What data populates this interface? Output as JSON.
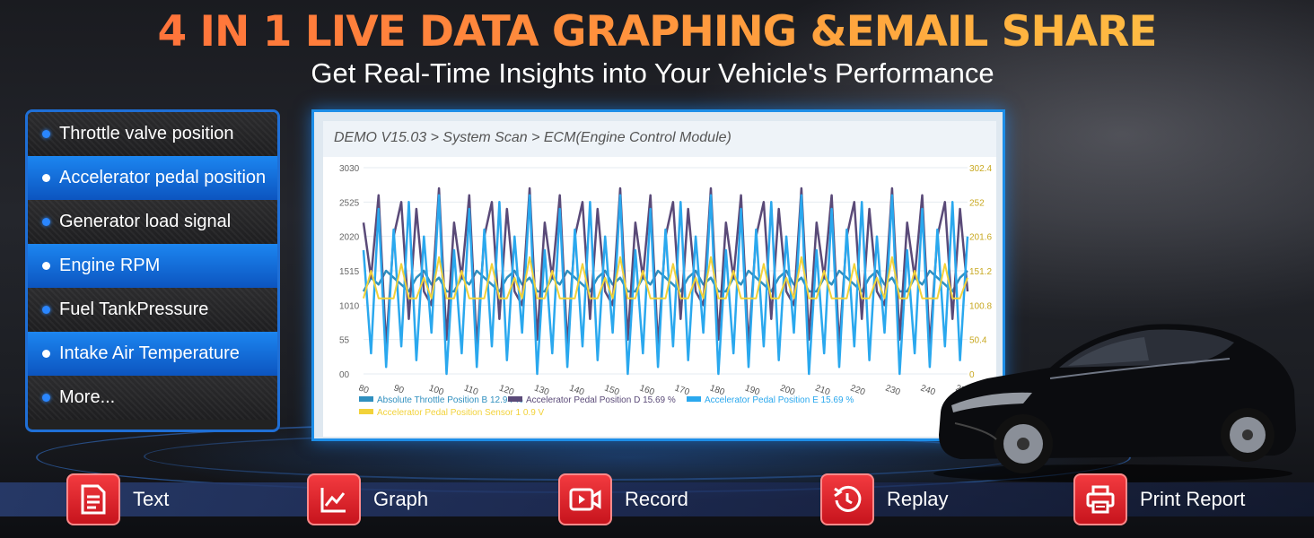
{
  "header": {
    "title": "4 IN 1 LIVE DATA GRAPHING &EMAIL SHARE",
    "subtitle": "Get Real-Time Insights into Your Vehicle's Performance"
  },
  "feature_list": [
    {
      "label": "Throttle valve position",
      "style": "dark"
    },
    {
      "label": "Accelerator pedal position",
      "style": "blue"
    },
    {
      "label": "Generator load signal",
      "style": "dark"
    },
    {
      "label": "Engine RPM",
      "style": "blue"
    },
    {
      "label": "Fuel TankPressure",
      "style": "dark"
    },
    {
      "label": "Intake Air Temperature",
      "style": "blue"
    },
    {
      "label": "More...",
      "style": "dark"
    }
  ],
  "screen": {
    "breadcrumb": "DEMO V15.03 > System Scan > ECM(Engine Control Module)"
  },
  "chart_data": {
    "type": "line",
    "x_ticks": [
      80,
      90,
      100,
      110,
      120,
      130,
      140,
      150,
      160,
      170,
      180,
      190,
      200,
      210,
      220,
      230,
      240,
      250
    ],
    "xlim": [
      80,
      252
    ],
    "left_axis_ticks": [
      "00",
      "55",
      "1010",
      "1515",
      "2020",
      "2525",
      "3030"
    ],
    "left_ylim": [
      0,
      30
    ],
    "right_axis_ticks": [
      "0",
      "50.4",
      "100.8",
      "151.2",
      "201.6",
      "252",
      "302.4"
    ],
    "series": [
      {
        "name": "Absolute Throttle Position B 12.94 %",
        "color": "#2f8fbf",
        "pattern": [
          12,
          14,
          13,
          15,
          14,
          13,
          12,
          14,
          15,
          13,
          14,
          12
        ]
      },
      {
        "name": "Accelerator Pedal Position D 15.69 %",
        "color": "#5a4a78",
        "pattern": [
          10,
          27,
          5,
          22,
          14,
          26,
          4,
          20,
          25,
          8,
          24,
          12
        ]
      },
      {
        "name": "Accelerator Pedal Position E 15.69 %",
        "color": "#2aa8ee",
        "pattern": [
          25,
          2,
          20,
          6,
          26,
          0,
          18,
          3,
          24,
          1,
          21,
          4
        ]
      },
      {
        "name": "Accelerator Pedal Position Sensor 1 0.9 V",
        "color": "#f2d23a",
        "pattern": [
          11,
          11,
          16,
          11,
          11,
          14,
          11,
          17,
          11,
          11,
          15,
          11
        ]
      }
    ],
    "legend_placement": "bottom-left"
  },
  "actions": [
    {
      "label": "Text",
      "icon": "document-icon"
    },
    {
      "label": "Graph",
      "icon": "line-graph-icon"
    },
    {
      "label": "Record",
      "icon": "video-record-icon"
    },
    {
      "label": "Replay",
      "icon": "replay-icon"
    },
    {
      "label": "Print Report",
      "icon": "printer-icon"
    }
  ],
  "colors": {
    "title_gradient_start": "#ff6a3a",
    "title_gradient_end": "#ffc24a",
    "accent_blue": "#1c86f0",
    "action_red": "#e3242b"
  }
}
